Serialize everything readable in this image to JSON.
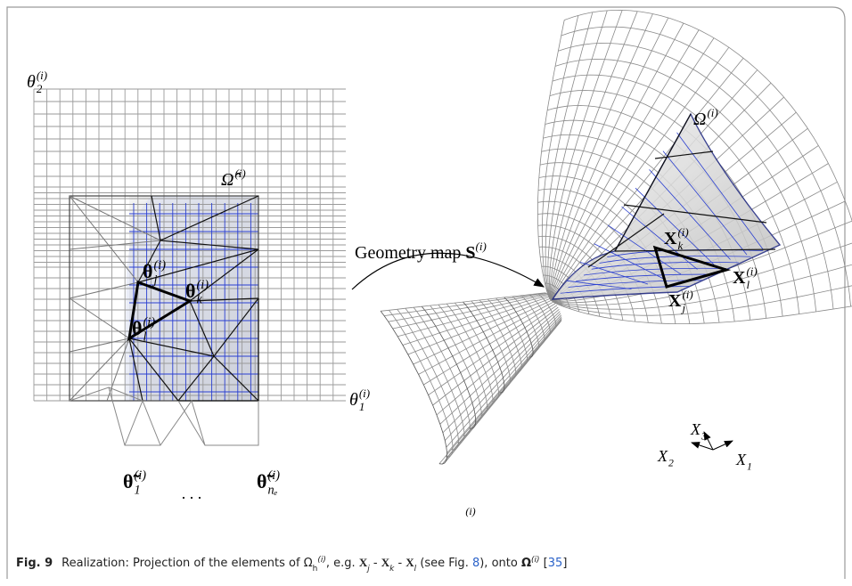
{
  "left_panel": {
    "axis_y": {
      "base": "θ",
      "sub": "2",
      "sup": "(i)"
    },
    "axis_x": {
      "base": "θ",
      "sub": "1",
      "sup": "(i)"
    },
    "domain": {
      "base": "Ω̂",
      "sup": "(i)"
    },
    "node_j": {
      "base": "θ",
      "sub": "j",
      "sup": "(i)"
    },
    "node_k": {
      "base": "θ",
      "sub": "k",
      "sup": "(i)"
    },
    "node_l": {
      "base": "θ",
      "sub": "l",
      "sup": "(i)"
    },
    "node_1": {
      "base": "θ̃",
      "sub": "1",
      "sup": "(i)"
    },
    "ellipsis": ". . .",
    "node_ne": {
      "base": "θ̃",
      "sub": "nₑ",
      "sup": "(i)"
    }
  },
  "map_label": {
    "text": "Geometry map ",
    "symbol": "S",
    "sup": "(i)"
  },
  "right_panel": {
    "domain": {
      "base": "Ω",
      "sup": "(i)"
    },
    "node_k": {
      "base": "X",
      "sub": "k",
      "sup": "(i)"
    },
    "node_l": {
      "base": "X",
      "sub": "l",
      "sup": "(i)"
    },
    "node_j": {
      "base": "X",
      "sub": "j",
      "sup": "(i)"
    },
    "axis_3": {
      "base": "X",
      "sub": "3"
    },
    "axis_2": {
      "base": "X",
      "sub": "2"
    },
    "axis_1": {
      "base": "X",
      "sub": "1"
    }
  },
  "index_label": "(i)",
  "caption": {
    "label": "Fig. 9",
    "segments": [
      "Realization: Projection of the elements of Ω",
      "h",
      "(i)",
      ", e.g. ",
      "X",
      "j",
      " - ",
      "X",
      "k",
      " - ",
      "X",
      "l",
      " (see Fig. ",
      "8",
      "), onto ",
      "Ω",
      "(i)",
      " [",
      "35",
      "]"
    ]
  }
}
